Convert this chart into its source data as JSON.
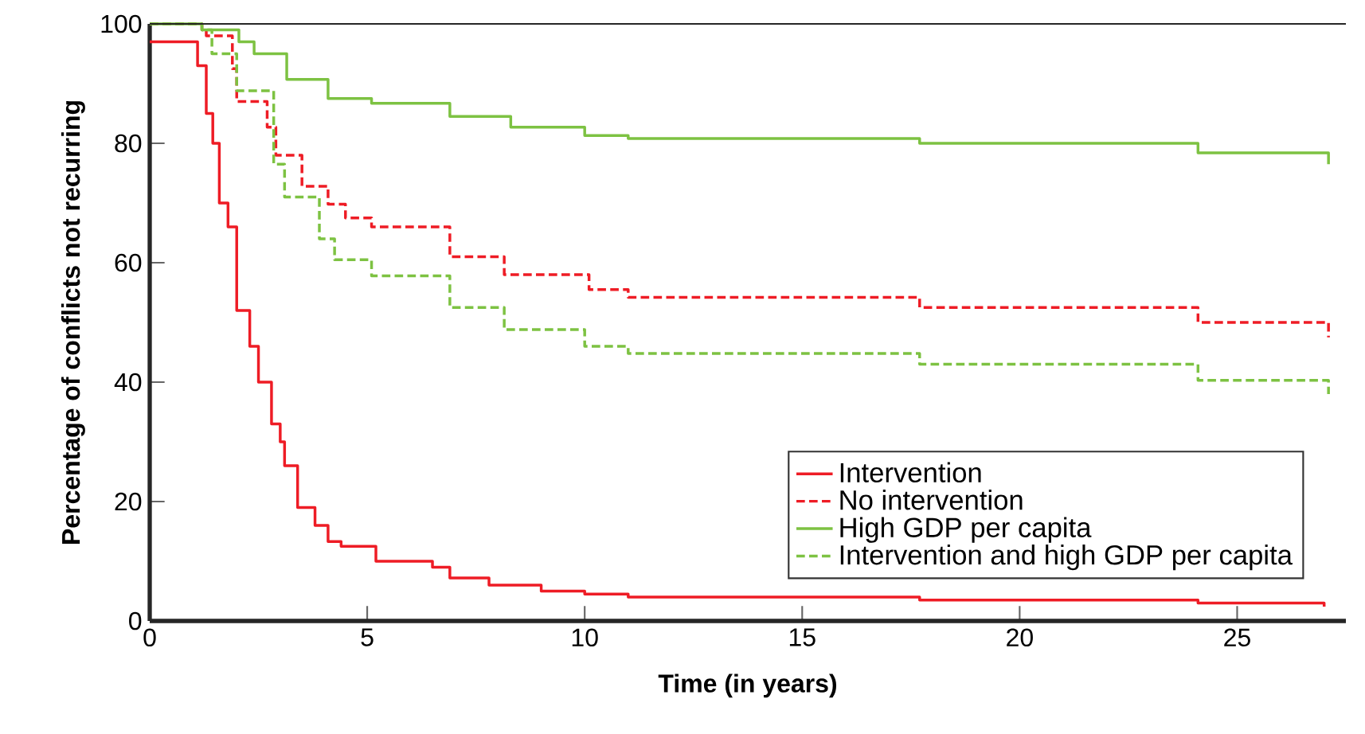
{
  "chart_data": {
    "type": "step",
    "xlabel": "Time (in years)",
    "ylabel": "Percentage of conflicts not recurring",
    "xlim": [
      0,
      27.5
    ],
    "ylim": [
      0,
      100
    ],
    "xticks": [
      0,
      5,
      10,
      15,
      20,
      25
    ],
    "yticks": [
      0,
      20,
      40,
      60,
      80,
      100
    ],
    "legend": "bottom right",
    "grid": false,
    "marker": "none",
    "series": [
      {
        "name": "Intervention",
        "color": "#ee1c25",
        "line_style": "solid",
        "x": [
          0,
          1.1,
          1.3,
          1.45,
          1.6,
          1.8,
          2.0,
          2.3,
          2.5,
          2.8,
          3.0,
          3.1,
          3.4,
          3.8,
          4.1,
          4.4,
          5.2,
          6.5,
          6.9,
          7.8,
          9,
          10,
          11,
          17.7,
          24.1,
          27
        ],
        "values": [
          97,
          93,
          85,
          80,
          70,
          66,
          52,
          46,
          40,
          33,
          30,
          26,
          19,
          16,
          13.3,
          12.5,
          10,
          9,
          7.2,
          6,
          5,
          4.5,
          4,
          3.5,
          3,
          2.4
        ]
      },
      {
        "name": "No intervention",
        "color": "#ee1c25",
        "line_style": "dashed",
        "x": [
          0,
          1.2,
          1.3,
          1.9,
          2.0,
          2.7,
          2.9,
          3.5,
          4.1,
          4.5,
          5.1,
          6.9,
          8.15,
          10.1,
          11,
          17.7,
          24.1,
          27.1
        ],
        "values": [
          100,
          99,
          98,
          92.5,
          87,
          82.7,
          78,
          72.8,
          69.8,
          67.5,
          66,
          61,
          58,
          55.5,
          54.2,
          52.5,
          50,
          47.5
        ]
      },
      {
        "name": "High GDP per capita",
        "color": "#7dc242",
        "line_style": "solid",
        "x": [
          0,
          1.2,
          2.05,
          2.4,
          3.15,
          4.1,
          5.1,
          6.9,
          8.3,
          10,
          11,
          17.7,
          24.1,
          27.1
        ],
        "values": [
          100,
          99,
          97,
          95,
          90.7,
          87.5,
          86.7,
          84.5,
          82.7,
          81.3,
          80.8,
          80,
          78.4,
          76.5
        ]
      },
      {
        "name": "Intervention and high GDP per capita",
        "color": "#7dc242",
        "line_style": "dashed",
        "x": [
          0,
          1.2,
          1.43,
          2.0,
          2.85,
          3.1,
          3.9,
          4.25,
          5.1,
          6.9,
          8.15,
          10,
          11,
          17.7,
          24.1,
          27.1
        ],
        "values": [
          100,
          99,
          95,
          88.8,
          76.5,
          71,
          64,
          60.5,
          57.8,
          52.5,
          48.8,
          46,
          44.8,
          43,
          40.3,
          38
        ]
      }
    ]
  }
}
